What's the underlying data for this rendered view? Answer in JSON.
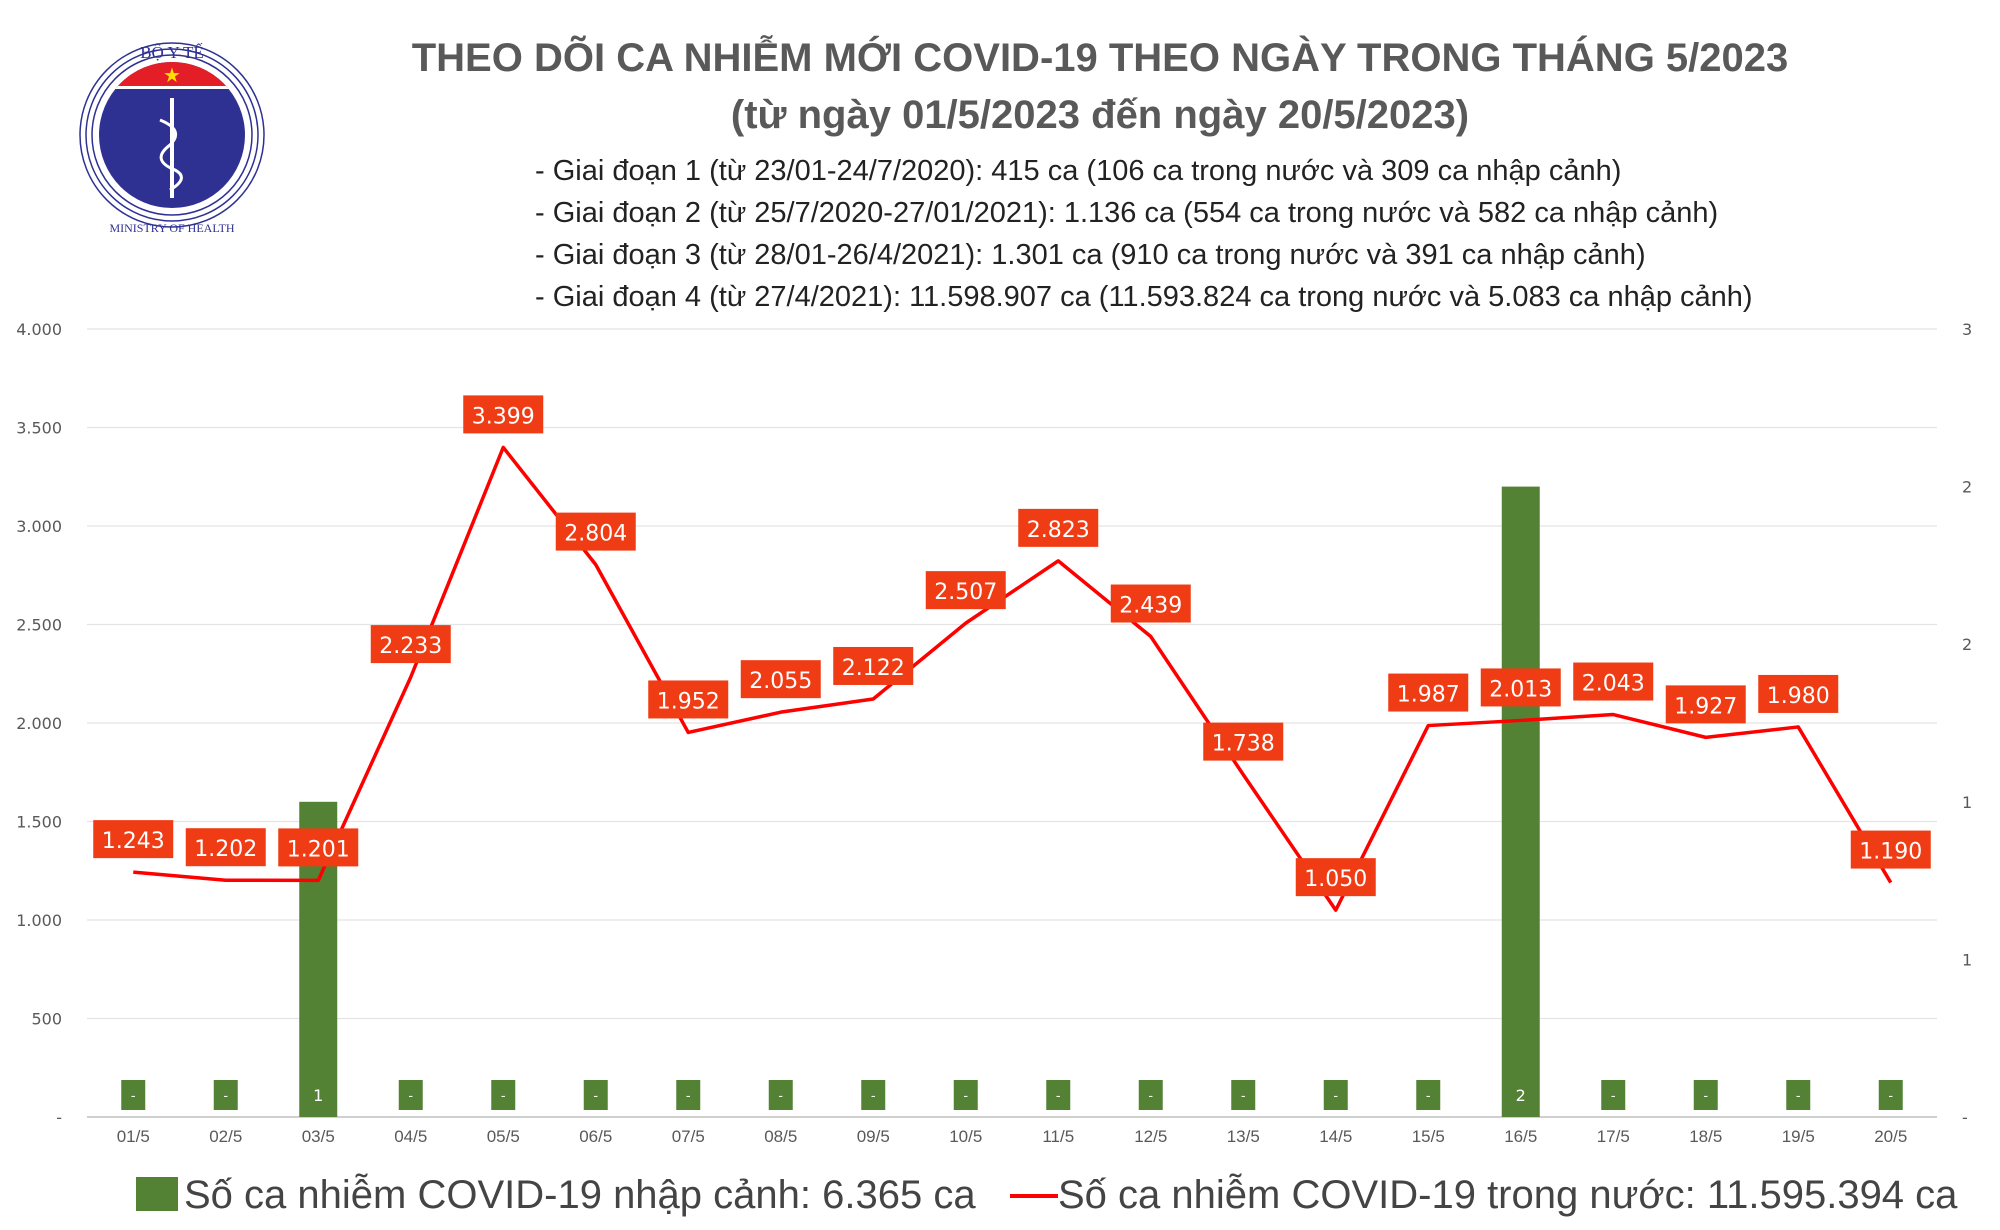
{
  "header": {
    "logo_text_top": "BỘ Y TẾ",
    "logo_text_bottom": "MINISTRY OF HEALTH",
    "title_line1": "THEO DÕI CA NHIỄM MỚI COVID-19 THEO NGÀY TRONG THÁNG 5/2023",
    "title_line2": "(từ ngày 01/5/2023 đến ngày 20/5/2023)",
    "bullets": [
      "- Giai đoạn 1 (từ 23/01-24/7/2020): 415 ca (106 ca trong nước và 309 ca nhập cảnh)",
      "- Giai đoạn 2 (từ 25/7/2020-27/01/2021): 1.136 ca (554 ca trong nước và 582 ca nhập cảnh)",
      "- Giai đoạn 3 (từ 28/01-26/4/2021): 1.301 ca (910 ca trong nước và 391 ca nhập cảnh)",
      "- Giai đoạn 4 (từ 27/4/2021): 11.598.907 ca (11.593.824 ca trong nước và 5.083 ca nhập cảnh)"
    ]
  },
  "chart_data": {
    "type": "bar+line",
    "categories": [
      "01/5",
      "02/5",
      "03/5",
      "04/5",
      "05/5",
      "06/5",
      "07/5",
      "08/5",
      "09/5",
      "10/5",
      "11/5",
      "12/5",
      "13/5",
      "14/5",
      "15/5",
      "16/5",
      "17/5",
      "18/5",
      "19/5",
      "20/5"
    ],
    "series": [
      {
        "name": "Số ca nhiễm COVID-19 nhập cảnh: 6.365 ca",
        "type": "bar",
        "axis": "right",
        "color": "#548235",
        "values": [
          0,
          0,
          1,
          0,
          0,
          0,
          0,
          0,
          0,
          0,
          0,
          0,
          0,
          0,
          0,
          2,
          0,
          0,
          0,
          0
        ],
        "labels": [
          "-",
          "-",
          "1",
          "-",
          "-",
          "-",
          "-",
          "-",
          "-",
          "-",
          "-",
          "-",
          "-",
          "-",
          "-",
          "2",
          "-",
          "-",
          "-",
          "-"
        ]
      },
      {
        "name": "Số ca nhiễm COVID-19 trong nước: 11.595.394 ca",
        "type": "line",
        "axis": "left",
        "color": "#ff0000",
        "values": [
          1243,
          1202,
          1201,
          2233,
          3399,
          2804,
          1952,
          2055,
          2122,
          2507,
          2823,
          2439,
          1738,
          1050,
          1987,
          2013,
          2043,
          1927,
          1980,
          1190
        ],
        "labels": [
          "1.243",
          "1.202",
          "1.201",
          "2.233",
          "3.399",
          "2.804",
          "1.952",
          "2.055",
          "2.122",
          "2.507",
          "2.823",
          "2.439",
          "1.738",
          "1.050",
          "1.987",
          "2.013",
          "2.043",
          "1.927",
          "1.980",
          "1.190"
        ]
      }
    ],
    "label_box_color": "#f03c14",
    "left_axis": {
      "ylim": [
        0,
        4000
      ],
      "ticks": [
        "-",
        "500",
        "1.000",
        "1.500",
        "2.000",
        "2.500",
        "3.000",
        "3.500",
        "4.000"
      ]
    },
    "right_axis": {
      "ylim": [
        0,
        2.5
      ],
      "ticks": [
        "-",
        "1",
        "1",
        "2",
        "2",
        "3"
      ]
    },
    "grid": true,
    "legend_position": "bottom"
  }
}
